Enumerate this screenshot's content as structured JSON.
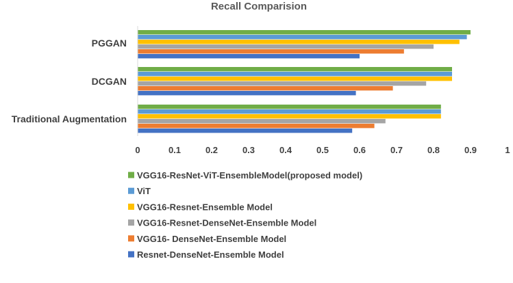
{
  "chart_data": {
    "type": "bar",
    "orientation": "horizontal",
    "title": "Recall Comparision",
    "categories": [
      "PGGAN",
      "DCGAN",
      "Traditional Augmentation"
    ],
    "series": [
      {
        "name": "VGG16-ResNet-ViT-EnsembleModel(proposed model)",
        "color": "#70ad47",
        "values": [
          0.9,
          0.85,
          0.82
        ]
      },
      {
        "name": "ViT",
        "color": "#5b9bd5",
        "values": [
          0.89,
          0.85,
          0.82
        ]
      },
      {
        "name": "VGG16-Resnet-Ensemble Model",
        "color": "#ffc000",
        "values": [
          0.87,
          0.85,
          0.82
        ]
      },
      {
        "name": "VGG16-Resnet-DenseNet-Ensemble Model",
        "color": "#a5a5a5",
        "values": [
          0.8,
          0.78,
          0.67
        ]
      },
      {
        "name": "VGG16- DenseNet-Ensemble Model",
        "color": "#ed7d31",
        "values": [
          0.72,
          0.69,
          0.64
        ]
      },
      {
        "name": "Resnet-DenseNet-Ensemble Model",
        "color": "#4472c4",
        "values": [
          0.6,
          0.59,
          0.58
        ]
      }
    ],
    "xlim": [
      0,
      1
    ],
    "xticks": [
      "0",
      "0.1",
      "0.2",
      "0.3",
      "0.4",
      "0.5",
      "0.6",
      "0.7",
      "0.8",
      "0.9",
      "1"
    ],
    "grid": false,
    "legend_position": "bottom"
  }
}
